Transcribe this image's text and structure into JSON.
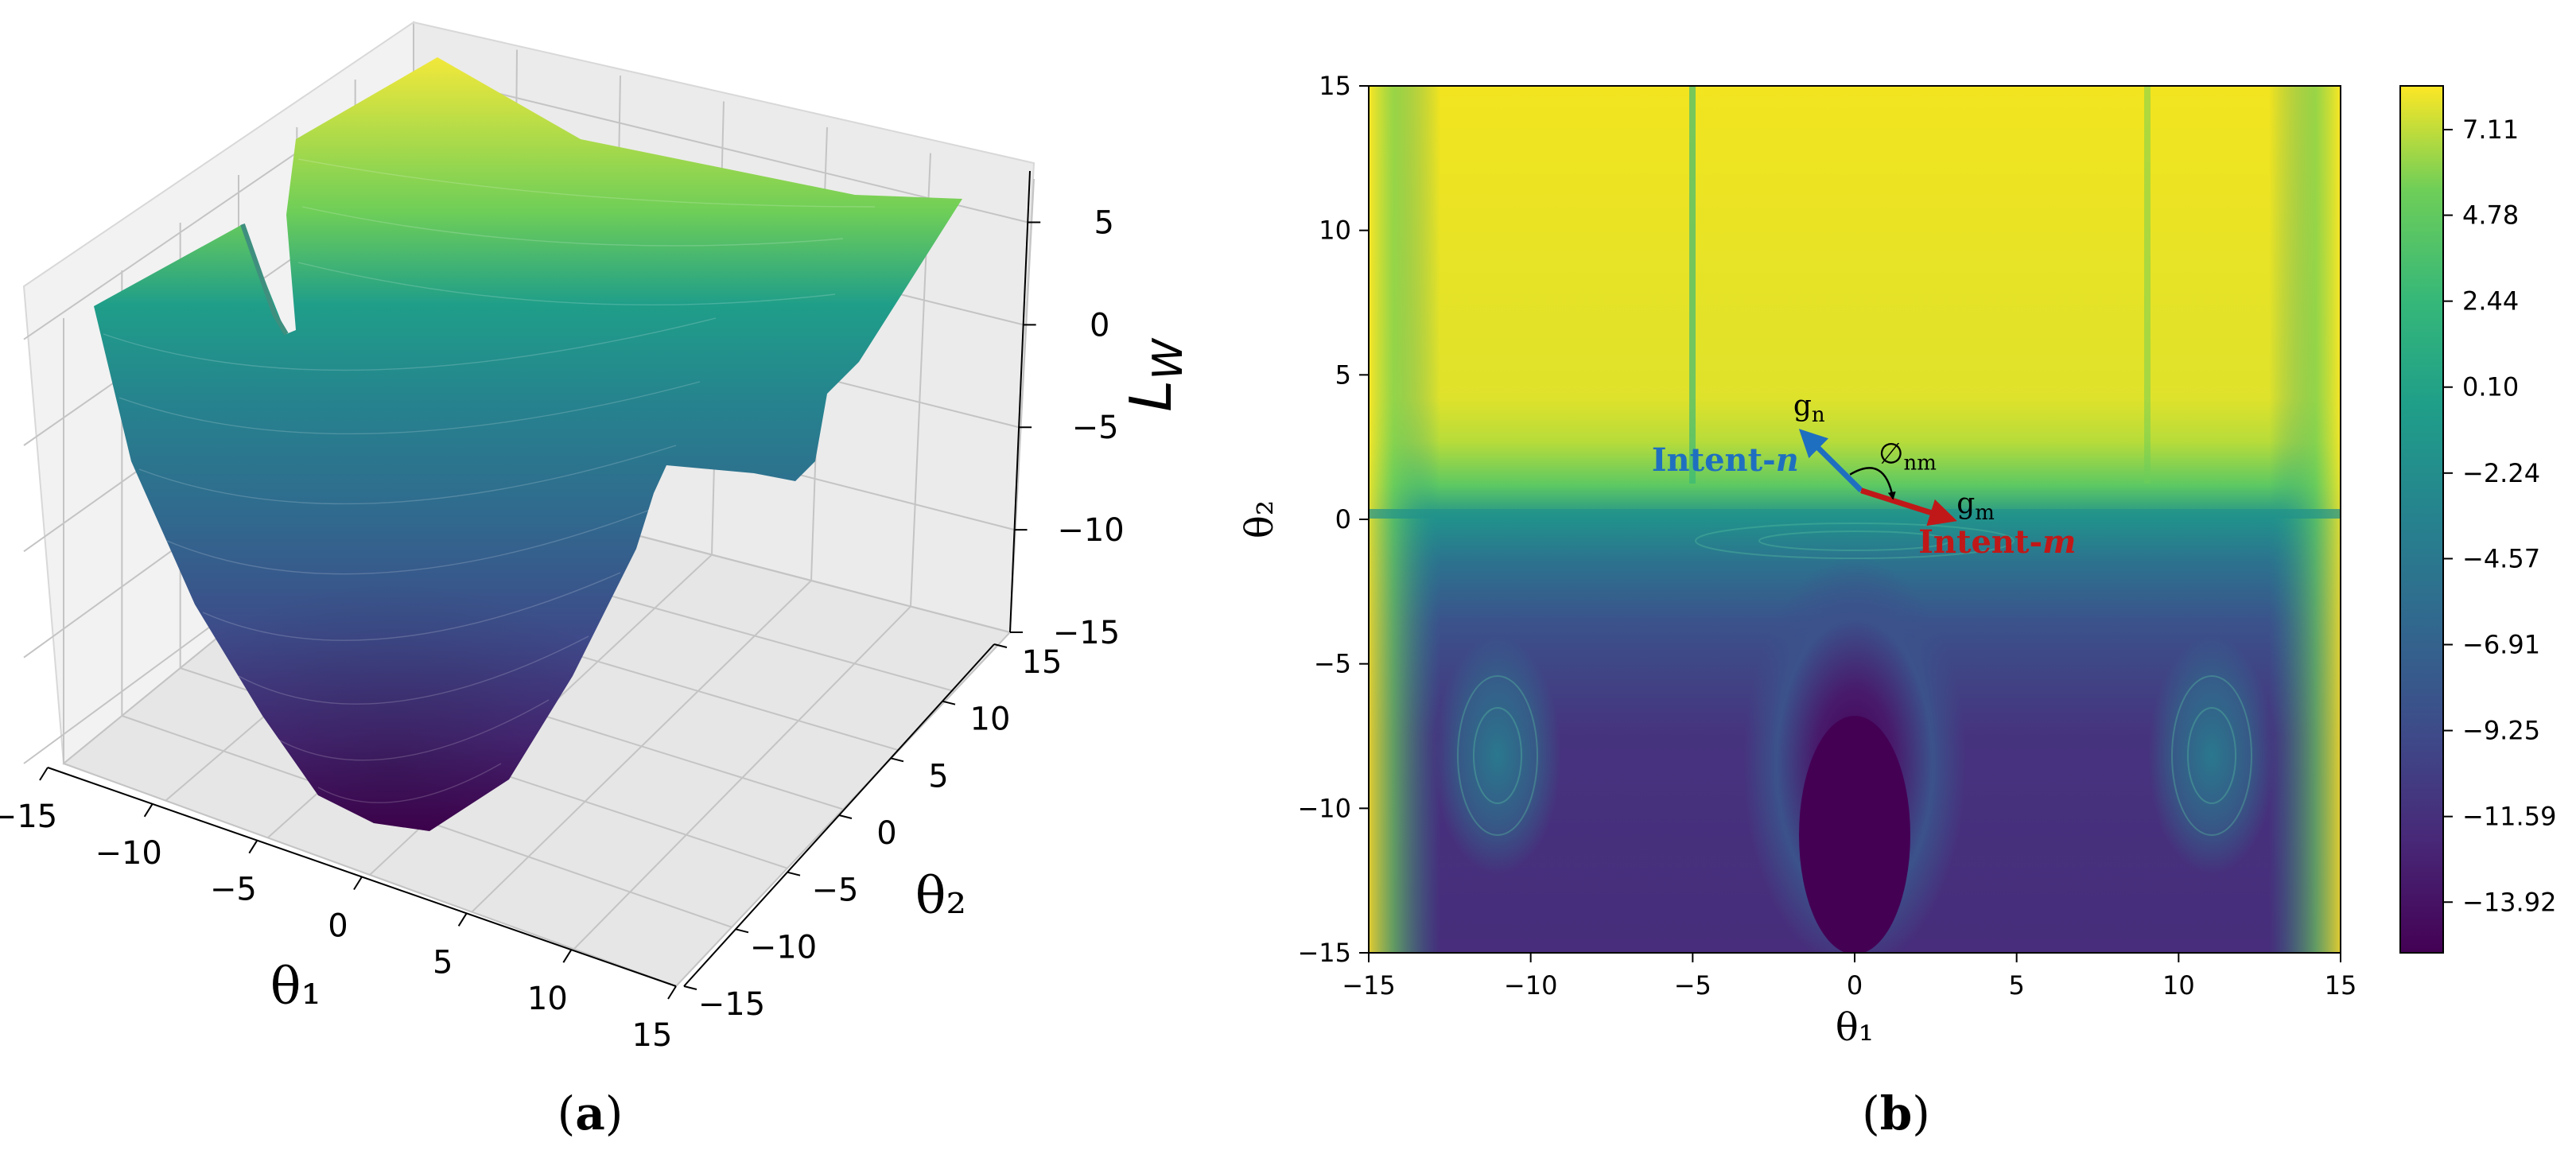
{
  "chart_data": [
    {
      "id": "a",
      "type": "surface3d",
      "panel_label": "(a)",
      "panel_letter": "a",
      "xlabel": "θ₁",
      "ylabel": "θ₂",
      "zlabel": "L",
      "zlabel_sub": "W",
      "xlim": [
        -15,
        15
      ],
      "ylim": [
        -15,
        15
      ],
      "zlim": [
        -15,
        7.5
      ],
      "x_ticks": [
        -15,
        -10,
        -5,
        0,
        5,
        10,
        15
      ],
      "y_ticks": [
        -15,
        -10,
        -5,
        0,
        5,
        10,
        15
      ],
      "z_ticks": [
        5,
        0,
        -5,
        -10,
        -15
      ],
      "x_tick_labels": [
        "−15",
        "−10",
        "−5",
        "0",
        "5",
        "10",
        "15"
      ],
      "y_tick_labels": [
        "−15",
        "−10",
        "−5",
        "0",
        "5",
        "10",
        "15"
      ],
      "z_tick_labels": [
        "5",
        "0",
        "−5",
        "−10",
        "−15"
      ],
      "minimum": {
        "theta1": 0,
        "theta2": -8,
        "value": -14.3
      },
      "colormap": "viridis",
      "grid": true
    },
    {
      "id": "b",
      "type": "heatmap",
      "panel_label": "(b)",
      "panel_letter": "b",
      "xlabel": "θ₁",
      "ylabel": "θ₂",
      "xlim": [
        -15,
        15
      ],
      "ylim": [
        -15,
        15
      ],
      "x_ticks": [
        -15,
        -10,
        -5,
        0,
        5,
        10,
        15
      ],
      "y_ticks": [
        15,
        10,
        5,
        0,
        -5,
        -10,
        -15
      ],
      "x_tick_labels": [
        "−15",
        "−10",
        "−5",
        "0",
        "5",
        "10",
        "15"
      ],
      "y_tick_labels": [
        "15",
        "10",
        "5",
        "0",
        "−5",
        "−10",
        "−15"
      ],
      "colormap": "viridis",
      "colorbar_ticks": [
        "7.11",
        "4.78",
        "2.44",
        "0.10",
        "−2.24",
        "−4.57",
        "−6.91",
        "−9.25",
        "−11.59",
        "−13.92"
      ],
      "colorbar_values": [
        7.11,
        4.78,
        2.44,
        0.1,
        -2.24,
        -4.57,
        -6.91,
        -9.25,
        -11.59,
        -13.92
      ],
      "colorbar_range": [
        -15.3,
        8.3
      ],
      "annotations": {
        "origin": [
          0.2,
          1.0
        ],
        "g_n": {
          "label": "g",
          "sub": "n",
          "tip": [
            -1.6,
            3.0
          ],
          "color": "#1f6fc0"
        },
        "g_m": {
          "label": "g",
          "sub": "m",
          "tip": [
            3.0,
            0.0
          ],
          "color": "#c01818"
        },
        "angle_label": "∅",
        "angle_sub": "nm",
        "intent_n": {
          "text": "Intent-",
          "italic": "n",
          "color": "#1f6fc0"
        },
        "intent_m": {
          "text": "Intent-",
          "italic": "m",
          "color": "#c01818"
        }
      }
    }
  ]
}
